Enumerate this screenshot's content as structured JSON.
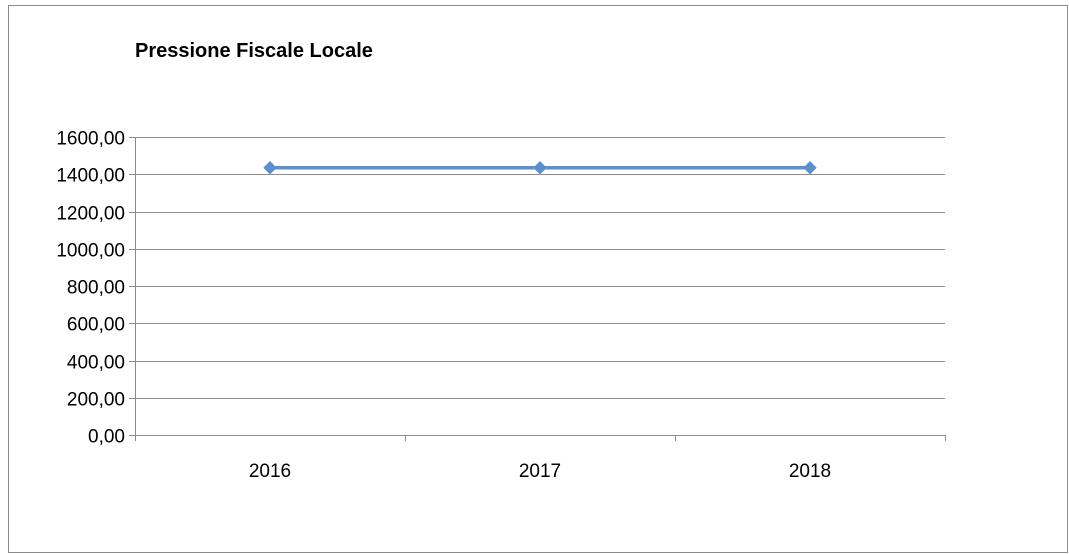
{
  "chart_data": {
    "type": "line",
    "title": "Pressione Fiscale Locale",
    "xlabel": "",
    "ylabel": "",
    "categories": [
      "2016",
      "2017",
      "2018"
    ],
    "series": [
      {
        "values": [
          1435,
          1435,
          1435
        ],
        "color": "#5b8fd0"
      }
    ],
    "ylim": [
      0,
      1600
    ],
    "yticks": [
      0,
      200,
      400,
      600,
      800,
      1000,
      1200,
      1400,
      1600
    ],
    "ytick_labels": [
      "0,00",
      "200,00",
      "400,00",
      "600,00",
      "800,00",
      "1000,00",
      "1200,00",
      "1400,00",
      "1600,00"
    ],
    "grid": true,
    "legend": "none",
    "marker": "diamond"
  }
}
